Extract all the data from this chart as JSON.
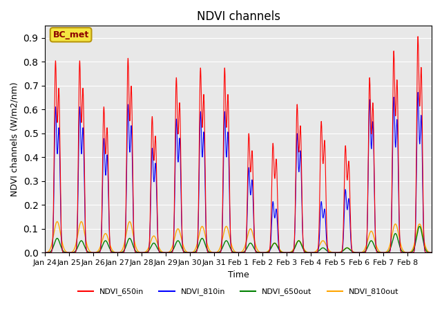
{
  "title": "NDVI channels",
  "ylabel": "NDVI channels (W/m2/nm)",
  "xlabel": "Time",
  "annotation": "BC_met",
  "ylim": [
    0.0,
    0.95
  ],
  "yticks": [
    0.0,
    0.1,
    0.2,
    0.3,
    0.4,
    0.5,
    0.6,
    0.7,
    0.8,
    0.9
  ],
  "colors": {
    "NDVI_650in": "red",
    "NDVI_810in": "blue",
    "NDVI_650out": "green",
    "NDVI_810out": "orange"
  },
  "legend_labels": [
    "NDVI_650in",
    "NDVI_810in",
    "NDVI_650out",
    "NDVI_810out"
  ],
  "xtick_labels": [
    "Jan 24",
    "Jan 25",
    "Jan 26",
    "Jan 27",
    "Jan 28",
    "Jan 29",
    "Jan 30",
    "Jan 31",
    "Feb 1",
    "Feb 2",
    "Feb 3",
    "Feb 4",
    "Feb 5",
    "Feb 6",
    "Feb 7",
    "Feb 8"
  ],
  "bg_color": "#e8e8e8",
  "spike_peaks_650in": [
    0.79,
    0.79,
    0.6,
    0.8,
    0.56,
    0.72,
    0.76,
    0.76,
    0.49,
    0.45,
    0.61,
    0.54,
    0.44,
    0.72,
    0.83,
    0.89
  ],
  "spike_peaks_810in": [
    0.6,
    0.6,
    0.47,
    0.61,
    0.43,
    0.55,
    0.58,
    0.58,
    0.35,
    0.21,
    0.49,
    0.21,
    0.26,
    0.63,
    0.64,
    0.66
  ],
  "spike_peaks_650out": [
    0.06,
    0.05,
    0.05,
    0.06,
    0.04,
    0.05,
    0.06,
    0.05,
    0.04,
    0.04,
    0.05,
    0.02,
    0.02,
    0.05,
    0.08,
    0.11
  ],
  "spike_peaks_810out": [
    0.13,
    0.13,
    0.08,
    0.13,
    0.07,
    0.1,
    0.11,
    0.11,
    0.1,
    0.04,
    0.05,
    0.05,
    0.02,
    0.09,
    0.12,
    0.12
  ]
}
